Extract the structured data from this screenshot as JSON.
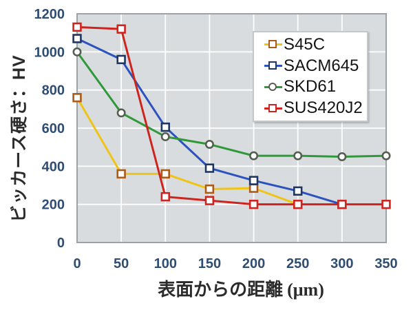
{
  "chart_data": {
    "type": "line",
    "title": "",
    "ylabel": "ビッカース硬さ：HV",
    "xlabel": "表面からの距離 (μm)",
    "xlabel_main": "表面からの距離",
    "xlabel_unit": "(μm)",
    "xlim": [
      0,
      350
    ],
    "ylim": [
      0,
      1200
    ],
    "xticks": [
      0,
      50,
      100,
      150,
      200,
      250,
      300,
      350
    ],
    "yticks": [
      0,
      200,
      400,
      600,
      800,
      1000,
      1200
    ],
    "grid": true,
    "legend_position": "top-right",
    "series": [
      {
        "name": "S45C",
        "line_color": "#EEC419",
        "marker": "square",
        "marker_color": "#AC5A18",
        "x": [
          0,
          50,
          100,
          150,
          200,
          250
        ],
        "values": [
          760,
          360,
          360,
          280,
          285,
          200
        ]
      },
      {
        "name": "SACM645",
        "line_color": "#2C52BE",
        "marker": "square",
        "marker_color": "#1F3660",
        "x": [
          0,
          50,
          100,
          150,
          200,
          250,
          300
        ],
        "values": [
          1070,
          960,
          605,
          390,
          325,
          270,
          200
        ]
      },
      {
        "name": "SKD61",
        "line_color": "#2F9838",
        "marker": "circle",
        "marker_color": "#555E52",
        "x": [
          0,
          50,
          100,
          150,
          200,
          250,
          300,
          350
        ],
        "values": [
          1000,
          680,
          555,
          515,
          455,
          455,
          450,
          455
        ]
      },
      {
        "name": "SUS420J2",
        "line_color": "#CD2420",
        "marker": "square",
        "marker_color": "#CD2420",
        "x": [
          0,
          50,
          100,
          150,
          200,
          250,
          300,
          350
        ],
        "values": [
          1130,
          1120,
          240,
          220,
          200,
          200,
          200,
          200
        ]
      }
    ]
  },
  "style": {
    "page_bg": "#FFFFFF",
    "plot_bg": "#D8DCDE",
    "grid_color": "#FFFFFF",
    "border_color": "#9DA2A6",
    "tick_color": "#2F4D73",
    "title_color": "#2B2B2B",
    "legend_bg": "#FFFFFF",
    "legend_border": "#C4C7CA",
    "marker_fill": "#FFFFFF"
  }
}
